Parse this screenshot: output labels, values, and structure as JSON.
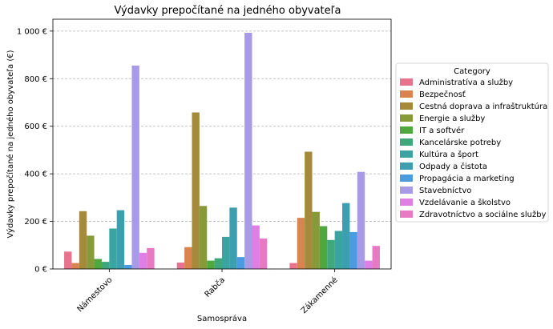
{
  "chart_data": {
    "type": "bar",
    "title": "Výdavky prepočítané na jedného obyvateľa",
    "xlabel": "Samospráva",
    "ylabel": "Výdavky prepočítané na jedného obyvateľa (€)",
    "ylim": [
      0,
      1050
    ],
    "yticks": [
      0,
      200,
      400,
      600,
      800,
      1000
    ],
    "ytick_labels": [
      "0 €",
      "200 €",
      "400 €",
      "600 €",
      "800 €",
      "1 000 €"
    ],
    "grid": "horizontal dashed",
    "legend_title": "Category",
    "legend_position": "right",
    "categories": [
      "Námestovo",
      "Rabča",
      "Zákamenné"
    ],
    "series": [
      {
        "name": "Administratíva a služby",
        "color": "#e8738f",
        "values": [
          73,
          27,
          25
        ]
      },
      {
        "name": "Bezpečnosť",
        "color": "#d9834e",
        "values": [
          25,
          92,
          215
        ]
      },
      {
        "name": "Cestná doprava a infraštruktúra",
        "color": "#a58a3c",
        "values": [
          243,
          658,
          493
        ]
      },
      {
        "name": "Energie a služby",
        "color": "#879a3a",
        "values": [
          140,
          265,
          240
        ]
      },
      {
        "name": "IT a softvér",
        "color": "#4ea83e",
        "values": [
          42,
          35,
          180
        ]
      },
      {
        "name": "Kancelárske potreby",
        "color": "#3ea87c",
        "values": [
          30,
          45,
          122
        ]
      },
      {
        "name": "Kultúra a šport",
        "color": "#3aa4a0",
        "values": [
          170,
          135,
          160
        ]
      },
      {
        "name": "Odpady a čistota",
        "color": "#3b9fb0",
        "values": [
          247,
          258,
          277
        ]
      },
      {
        "name": "Propagácia a marketing",
        "color": "#4a9be0",
        "values": [
          17,
          50,
          155
        ]
      },
      {
        "name": "Stavebníctvo",
        "color": "#a99ae8",
        "values": [
          855,
          993,
          408
        ]
      },
      {
        "name": "Vzdelávanie a školstvo",
        "color": "#df7fe5",
        "values": [
          68,
          183,
          35
        ]
      },
      {
        "name": "Zdravotníctvo a sociálne služby",
        "color": "#e77ac3",
        "values": [
          88,
          128,
          97
        ]
      }
    ]
  }
}
